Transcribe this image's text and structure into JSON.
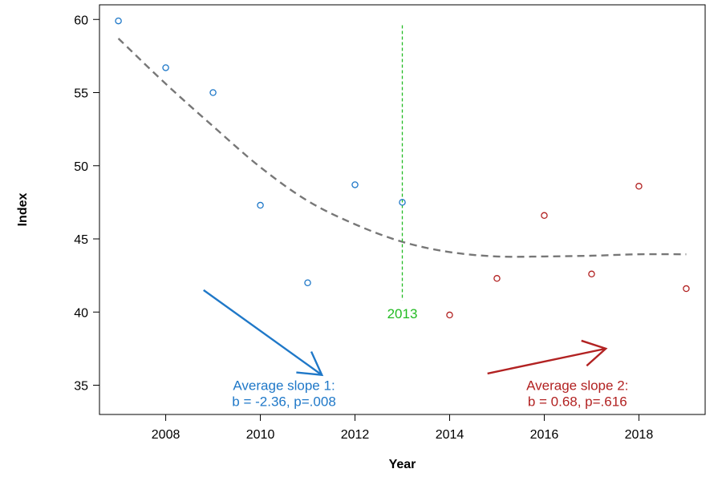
{
  "chart_data": {
    "type": "scatter",
    "xlabel": "Year",
    "ylabel": "Index",
    "xlim": [
      2006.6,
      2019.4
    ],
    "ylim": [
      33,
      61
    ],
    "x_ticks": [
      2008,
      2010,
      2012,
      2014,
      2016,
      2018
    ],
    "y_ticks": [
      35,
      40,
      45,
      50,
      55,
      60
    ],
    "grid": false,
    "series": [
      {
        "color": "#1f78c8",
        "marker": "open-circle",
        "points": [
          {
            "x": 2007,
            "y": 59.9
          },
          {
            "x": 2008,
            "y": 56.7
          },
          {
            "x": 2009,
            "y": 55.0
          },
          {
            "x": 2010,
            "y": 47.3
          },
          {
            "x": 2011,
            "y": 42.0
          },
          {
            "x": 2012,
            "y": 48.7
          },
          {
            "x": 2013,
            "y": 47.5
          }
        ]
      },
      {
        "color": "#b22222",
        "marker": "open-circle",
        "points": [
          {
            "x": 2014,
            "y": 39.8
          },
          {
            "x": 2015,
            "y": 42.3
          },
          {
            "x": 2016,
            "y": 46.6
          },
          {
            "x": 2017,
            "y": 42.6
          },
          {
            "x": 2018,
            "y": 48.6
          },
          {
            "x": 2019,
            "y": 41.6
          }
        ]
      }
    ],
    "trend_line": {
      "color": "#777777",
      "style": "dashed",
      "points": [
        {
          "x": 2007,
          "y": 58.7
        },
        {
          "x": 2008,
          "y": 55.6
        },
        {
          "x": 2009,
          "y": 52.7
        },
        {
          "x": 2010,
          "y": 49.9
        },
        {
          "x": 2011,
          "y": 47.6
        },
        {
          "x": 2012,
          "y": 46.0
        },
        {
          "x": 2013,
          "y": 44.8
        },
        {
          "x": 2014,
          "y": 44.1
        },
        {
          "x": 2015,
          "y": 43.8
        },
        {
          "x": 2016,
          "y": 43.8
        },
        {
          "x": 2017,
          "y": 43.85
        },
        {
          "x": 2018,
          "y": 43.95
        },
        {
          "x": 2019,
          "y": 43.95
        }
      ]
    },
    "breakpoint": {
      "x": 2013,
      "y_range": [
        40.8,
        59.6
      ],
      "label": "2013",
      "label_y": 39.9,
      "color": "#22bb22"
    },
    "annotations": [
      {
        "color": "#1f78c8",
        "line1": "Average slope 1:",
        "line2": "b = -2.36, p=.008",
        "text_x": 2010.5,
        "text_y1": 35.0,
        "text_y2": 33.9,
        "arrow_from": {
          "x": 2008.8,
          "y": 41.5
        },
        "arrow_to": {
          "x": 2011.3,
          "y": 35.7
        }
      },
      {
        "color": "#b22222",
        "line1": "Average slope 2:",
        "line2": "b = 0.68, p=.616",
        "text_x": 2016.7,
        "text_y1": 35.0,
        "text_y2": 33.9,
        "arrow_from": {
          "x": 2014.8,
          "y": 35.8
        },
        "arrow_to": {
          "x": 2017.3,
          "y": 37.5
        }
      }
    ]
  }
}
